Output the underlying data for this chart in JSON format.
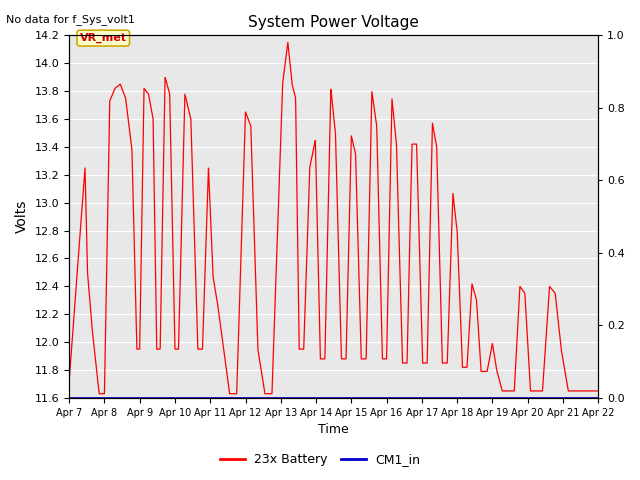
{
  "title": "System Power Voltage",
  "top_left_text": "No data for f_Sys_volt1",
  "xlabel": "Time",
  "ylabel": "Volts",
  "ylim_left": [
    11.6,
    14.2
  ],
  "ylim_right": [
    0.0,
    1.0
  ],
  "yticks_left": [
    11.6,
    11.8,
    12.0,
    12.2,
    12.4,
    12.6,
    12.8,
    13.0,
    13.2,
    13.4,
    13.6,
    13.8,
    14.0,
    14.2
  ],
  "yticks_right": [
    0.0,
    0.2,
    0.4,
    0.6,
    0.8,
    1.0
  ],
  "xtick_labels": [
    "Apr 7",
    "Apr 8",
    "Apr 9",
    "Apr 10",
    "Apr 11",
    "Apr 12",
    "Apr 13",
    "Apr 14",
    "Apr 15",
    "Apr 16",
    "Apr 17",
    "Apr 18",
    "Apr 19",
    "Apr 20",
    "Apr 21",
    "Apr 22"
  ],
  "background_color": "#ffffff",
  "plot_bg_color": "#e8e8e8",
  "line_color_battery": "#ff0000",
  "line_color_cm1": "#0000cc",
  "legend_items": [
    "23x Battery",
    "CM1_in"
  ],
  "legend_colors": [
    "#ff0000",
    "#0000cc"
  ],
  "annotation_text": "VR_met",
  "grid_color": "#ffffff"
}
